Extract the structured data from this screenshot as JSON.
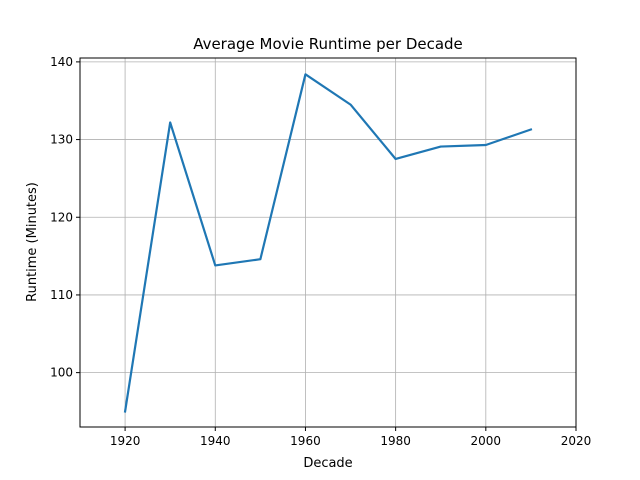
{
  "chart_data": {
    "type": "line",
    "title": "Average Movie Runtime per Decade",
    "xlabel": "Decade",
    "ylabel": "Runtime (Minutes)",
    "xlim": [
      1910,
      2020
    ],
    "ylim": [
      93,
      140.5
    ],
    "xticks": [
      1920,
      1940,
      1960,
      1980,
      2000,
      2020
    ],
    "yticks": [
      100,
      110,
      120,
      130,
      140
    ],
    "grid": true,
    "series": [
      {
        "color": "#1f77b4",
        "x": [
          1920,
          1930,
          1940,
          1950,
          1960,
          1970,
          1980,
          1990,
          2000,
          2010
        ],
        "y": [
          95.0,
          132.2,
          113.8,
          114.6,
          138.4,
          134.5,
          127.5,
          129.1,
          129.3,
          131.3
        ]
      }
    ]
  }
}
